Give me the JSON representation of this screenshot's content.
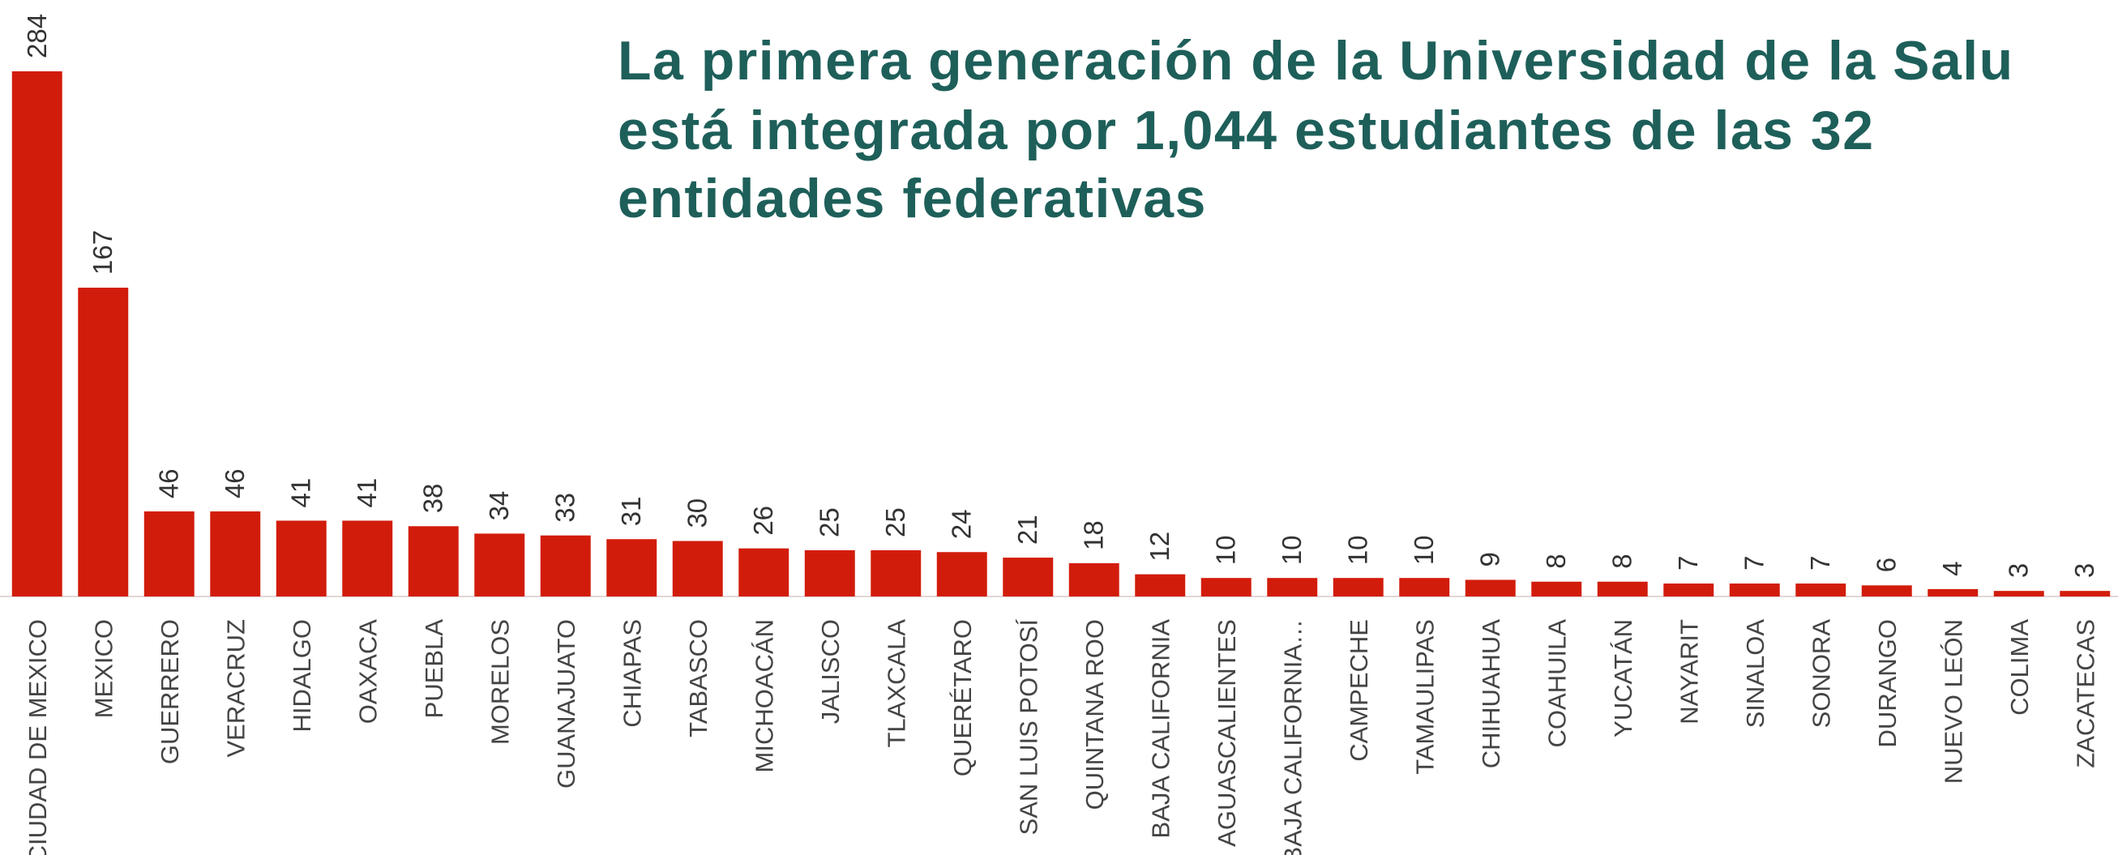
{
  "chart_data": {
    "type": "bar",
    "title_lines": [
      "La primera generación de la Universidad de la Salu",
      "está integrada por 1,044 estudiantes de las 32",
      "entidades federativas"
    ],
    "categories": [
      "CIUDAD DE MEXICO",
      "MEXICO",
      "GUERRERO",
      "VERACRUZ",
      "HIDALGO",
      "OAXACA",
      "PUEBLA",
      "MORELOS",
      "GUANAJUATO",
      "CHIAPAS",
      "TABASCO",
      "MICHOACÁN",
      "JALISCO",
      "TLAXCALA",
      "QUERÉTARO",
      "SAN LUIS POTOSÍ",
      "QUINTANA ROO",
      "BAJA CALIFORNIA",
      "AGUASCALIENTES",
      "BAJA CALIFORNIA…",
      "CAMPECHE",
      "TAMAULIPAS",
      "CHIHUAHUA",
      "COAHUILA",
      "YUCATÁN",
      "NAYARIT",
      "SINALOA",
      "SONORA",
      "DURANGO",
      "NUEVO LEÓN",
      "COLIMA",
      "ZACATECAS"
    ],
    "values": [
      284,
      167,
      46,
      46,
      41,
      41,
      38,
      34,
      33,
      31,
      30,
      26,
      25,
      25,
      24,
      21,
      18,
      12,
      10,
      10,
      10,
      10,
      9,
      8,
      8,
      7,
      7,
      7,
      6,
      4,
      3,
      3
    ],
    "color": "#d21c0b"
  }
}
